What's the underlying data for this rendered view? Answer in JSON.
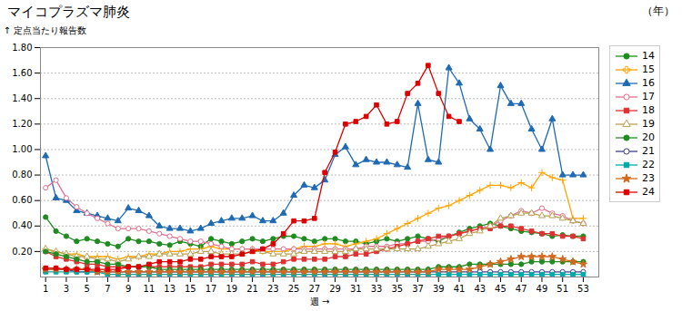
{
  "chart_data": {
    "type": "line",
    "title": "マイコプラズマ肺炎",
    "legend_title": "（年）",
    "xlabel": "週",
    "ylabel": "定点当たり報告数",
    "x": [
      1,
      2,
      3,
      4,
      5,
      6,
      7,
      8,
      9,
      10,
      11,
      12,
      13,
      14,
      15,
      16,
      17,
      18,
      19,
      20,
      21,
      22,
      23,
      24,
      25,
      26,
      27,
      28,
      29,
      30,
      31,
      32,
      33,
      34,
      35,
      36,
      37,
      38,
      39,
      40,
      41,
      42,
      43,
      44,
      45,
      46,
      47,
      48,
      49,
      50,
      51,
      52,
      53
    ],
    "xlim": [
      0.5,
      54.5
    ],
    "xticks": [
      1,
      3,
      5,
      7,
      9,
      11,
      13,
      15,
      17,
      19,
      21,
      23,
      25,
      27,
      29,
      31,
      33,
      35,
      37,
      39,
      41,
      43,
      45,
      47,
      49,
      51,
      53
    ],
    "ylim": [
      0,
      1.8
    ],
    "yticks": [
      {
        "value": 0.2,
        "label": "0.20"
      },
      {
        "value": 0.4,
        "label": "0.40"
      },
      {
        "value": 0.6,
        "label": "0.60"
      },
      {
        "value": 0.8,
        "label": "0.80"
      },
      {
        "value": 1.0,
        "label": "1.00"
      },
      {
        "value": 1.2,
        "label": "1.20"
      },
      {
        "value": 1.4,
        "label": "1.40"
      },
      {
        "value": 1.6,
        "label": "1.60"
      },
      {
        "value": 1.8,
        "label": "1.80"
      }
    ],
    "grid": "y",
    "legend": "right",
    "series": [
      {
        "name": "14",
        "color": "#1e8c1e",
        "marker": "circle",
        "values": [
          0.47,
          0.36,
          0.32,
          0.28,
          0.3,
          0.28,
          0.26,
          0.24,
          0.3,
          0.28,
          0.28,
          0.26,
          0.25,
          0.28,
          0.26,
          0.24,
          0.3,
          0.28,
          0.26,
          0.28,
          0.3,
          0.28,
          0.3,
          0.32,
          0.32,
          0.3,
          0.28,
          0.3,
          0.3,
          0.28,
          0.28,
          0.26,
          0.28,
          0.3,
          0.28,
          0.3,
          0.32,
          0.3,
          0.28,
          0.32,
          0.35,
          0.38,
          0.4,
          0.42,
          0.4,
          0.38,
          0.36,
          0.35,
          0.34,
          0.32,
          0.33,
          0.32,
          0.32
        ]
      },
      {
        "name": "15",
        "color": "#ffa500",
        "marker": "plus",
        "values": [
          0.22,
          0.2,
          0.18,
          0.18,
          0.16,
          0.16,
          0.16,
          0.14,
          0.16,
          0.16,
          0.18,
          0.18,
          0.2,
          0.2,
          0.22,
          0.22,
          0.24,
          0.22,
          0.22,
          0.22,
          0.22,
          0.2,
          0.2,
          0.2,
          0.22,
          0.24,
          0.24,
          0.26,
          0.26,
          0.24,
          0.26,
          0.28,
          0.3,
          0.34,
          0.38,
          0.42,
          0.46,
          0.5,
          0.54,
          0.56,
          0.6,
          0.64,
          0.68,
          0.72,
          0.72,
          0.7,
          0.74,
          0.7,
          0.82,
          0.78,
          0.76,
          0.46,
          0.46
        ]
      },
      {
        "name": "16",
        "color": "#1e6ab4",
        "marker": "triangle",
        "values": [
          0.95,
          0.62,
          0.6,
          0.52,
          0.5,
          0.48,
          0.46,
          0.44,
          0.54,
          0.52,
          0.48,
          0.4,
          0.38,
          0.38,
          0.36,
          0.38,
          0.42,
          0.44,
          0.46,
          0.46,
          0.48,
          0.44,
          0.44,
          0.5,
          0.64,
          0.72,
          0.7,
          0.76,
          0.96,
          1.02,
          0.88,
          0.92,
          0.9,
          0.9,
          0.88,
          0.86,
          1.36,
          0.92,
          0.9,
          1.64,
          1.52,
          1.24,
          1.16,
          1.0,
          1.5,
          1.36,
          1.36,
          1.16,
          1.0,
          1.24,
          0.8,
          0.8,
          0.8
        ]
      },
      {
        "name": "17",
        "color": "#e07090",
        "marker": "circle-open",
        "values": [
          0.7,
          0.76,
          0.62,
          0.55,
          0.5,
          0.46,
          0.42,
          0.38,
          0.38,
          0.38,
          0.36,
          0.34,
          0.32,
          0.3,
          0.28,
          0.28,
          0.26,
          0.24,
          0.22,
          0.22,
          0.22,
          0.22,
          0.22,
          0.22,
          0.22,
          0.22,
          0.22,
          0.22,
          0.22,
          0.22,
          0.22,
          0.24,
          0.24,
          0.24,
          0.26,
          0.26,
          0.28,
          0.28,
          0.3,
          0.32,
          0.34,
          0.36,
          0.38,
          0.4,
          0.44,
          0.48,
          0.52,
          0.5,
          0.54,
          0.5,
          0.48,
          0.44,
          0.42
        ]
      },
      {
        "name": "18",
        "color": "#e03030",
        "marker": "square",
        "values": [
          0.2,
          0.16,
          0.14,
          0.12,
          0.1,
          0.1,
          0.08,
          0.08,
          0.08,
          0.08,
          0.08,
          0.08,
          0.08,
          0.08,
          0.08,
          0.08,
          0.1,
          0.1,
          0.1,
          0.1,
          0.12,
          0.1,
          0.1,
          0.12,
          0.14,
          0.14,
          0.14,
          0.14,
          0.16,
          0.16,
          0.18,
          0.18,
          0.2,
          0.22,
          0.24,
          0.26,
          0.28,
          0.3,
          0.32,
          0.32,
          0.34,
          0.36,
          0.38,
          0.38,
          0.4,
          0.4,
          0.38,
          0.36,
          0.34,
          0.34,
          0.32,
          0.32,
          0.3
        ]
      },
      {
        "name": "19",
        "color": "#b8a050",
        "marker": "triangle-open",
        "values": [
          0.22,
          0.2,
          0.18,
          0.16,
          0.16,
          0.14,
          0.14,
          0.12,
          0.14,
          0.16,
          0.16,
          0.18,
          0.18,
          0.18,
          0.18,
          0.2,
          0.2,
          0.18,
          0.18,
          0.18,
          0.2,
          0.2,
          0.18,
          0.18,
          0.18,
          0.2,
          0.2,
          0.2,
          0.2,
          0.2,
          0.22,
          0.22,
          0.22,
          0.22,
          0.22,
          0.22,
          0.22,
          0.24,
          0.26,
          0.28,
          0.3,
          0.34,
          0.36,
          0.4,
          0.46,
          0.48,
          0.5,
          0.5,
          0.48,
          0.48,
          0.46,
          0.44,
          0.42
        ]
      },
      {
        "name": "20",
        "color": "#228B22",
        "marker": "circle",
        "values": [
          0.2,
          0.18,
          0.16,
          0.14,
          0.12,
          0.12,
          0.1,
          0.1,
          0.08,
          0.08,
          0.08,
          0.06,
          0.06,
          0.06,
          0.06,
          0.06,
          0.06,
          0.06,
          0.06,
          0.06,
          0.06,
          0.06,
          0.06,
          0.06,
          0.06,
          0.06,
          0.06,
          0.06,
          0.06,
          0.06,
          0.06,
          0.06,
          0.06,
          0.06,
          0.06,
          0.06,
          0.06,
          0.06,
          0.08,
          0.08,
          0.08,
          0.1,
          0.1,
          0.1,
          0.1,
          0.1,
          0.1,
          0.12,
          0.12,
          0.12,
          0.12,
          0.12,
          0.12
        ]
      },
      {
        "name": "21",
        "color": "#404090",
        "marker": "circle-open",
        "values": [
          0.06,
          0.06,
          0.06,
          0.04,
          0.04,
          0.04,
          0.04,
          0.04,
          0.04,
          0.04,
          0.04,
          0.04,
          0.04,
          0.04,
          0.04,
          0.04,
          0.04,
          0.04,
          0.04,
          0.04,
          0.04,
          0.04,
          0.04,
          0.04,
          0.04,
          0.04,
          0.04,
          0.04,
          0.04,
          0.04,
          0.04,
          0.04,
          0.04,
          0.04,
          0.04,
          0.04,
          0.04,
          0.04,
          0.04,
          0.04,
          0.04,
          0.04,
          0.04,
          0.04,
          0.04,
          0.04,
          0.04,
          0.04,
          0.04,
          0.04,
          0.04,
          0.04,
          0.04
        ]
      },
      {
        "name": "22",
        "color": "#00aaaa",
        "marker": "square",
        "values": [
          0.04,
          0.04,
          0.04,
          0.04,
          0.04,
          0.04,
          0.02,
          0.02,
          0.02,
          0.02,
          0.02,
          0.02,
          0.02,
          0.02,
          0.02,
          0.02,
          0.02,
          0.02,
          0.02,
          0.02,
          0.02,
          0.02,
          0.02,
          0.02,
          0.02,
          0.02,
          0.02,
          0.02,
          0.02,
          0.02,
          0.02,
          0.02,
          0.02,
          0.02,
          0.02,
          0.02,
          0.02,
          0.02,
          0.02,
          0.02,
          0.02,
          0.02,
          0.02,
          0.02,
          0.02,
          0.02,
          0.02,
          0.02,
          0.02,
          0.02,
          0.02,
          0.02,
          0.02
        ]
      },
      {
        "name": "23",
        "color": "#d2691e",
        "marker": "star",
        "values": [
          0.06,
          0.06,
          0.06,
          0.06,
          0.06,
          0.04,
          0.04,
          0.04,
          0.04,
          0.04,
          0.04,
          0.04,
          0.04,
          0.04,
          0.04,
          0.04,
          0.04,
          0.04,
          0.04,
          0.04,
          0.04,
          0.04,
          0.04,
          0.04,
          0.04,
          0.04,
          0.04,
          0.04,
          0.04,
          0.04,
          0.04,
          0.04,
          0.04,
          0.04,
          0.04,
          0.04,
          0.04,
          0.04,
          0.06,
          0.06,
          0.06,
          0.06,
          0.08,
          0.1,
          0.12,
          0.14,
          0.16,
          0.16,
          0.16,
          0.16,
          0.14,
          0.12,
          0.1
        ]
      },
      {
        "name": "24",
        "color": "#dd0000",
        "marker": "square",
        "values": [
          0.07,
          0.07,
          0.06,
          0.06,
          0.06,
          0.06,
          0.06,
          0.06,
          0.08,
          0.08,
          0.1,
          0.12,
          0.12,
          0.12,
          0.14,
          0.14,
          0.16,
          0.16,
          0.16,
          0.18,
          0.2,
          0.22,
          0.26,
          0.34,
          0.44,
          0.44,
          0.46,
          0.82,
          0.98,
          1.2,
          1.22,
          1.26,
          1.35,
          1.2,
          1.22,
          1.44,
          1.52,
          1.66,
          1.44,
          1.26,
          1.22,
          null,
          null,
          null,
          null,
          null,
          null,
          null,
          null,
          null,
          null,
          null,
          null
        ]
      }
    ]
  }
}
